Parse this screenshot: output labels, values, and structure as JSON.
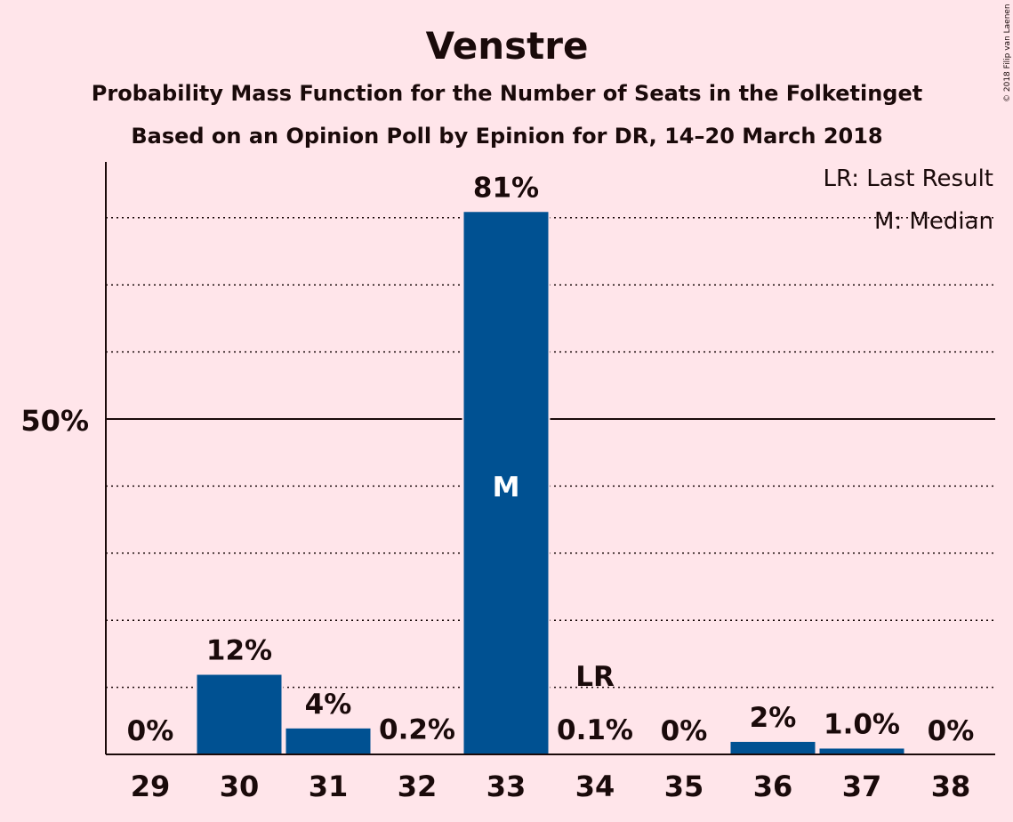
{
  "copyright": "© 2018 Filip van Laenen",
  "chart_data": {
    "type": "bar",
    "title": "Venstre",
    "subtitle": "Probability Mass Function for the Number of Seats in the Folketinget",
    "subtitle2": "Based on an Opinion Poll by Epinion for DR, 14–20 March 2018",
    "categories": [
      "29",
      "30",
      "31",
      "32",
      "33",
      "34",
      "35",
      "36",
      "37",
      "38"
    ],
    "values": [
      0,
      12,
      4,
      0.2,
      81,
      0.1,
      0,
      2,
      1.0,
      0
    ],
    "labels": [
      "0%",
      "12%",
      "4%",
      "0.2%",
      "81%",
      "0.1%",
      "0%",
      "2%",
      "1.0%",
      "0%"
    ],
    "ylim": [
      0,
      88
    ],
    "y_tick_label": "50%",
    "y_tick_value": 50,
    "gridlines": [
      10,
      20,
      30,
      40,
      50,
      60,
      70,
      80
    ],
    "median_category": "33",
    "median_marker": "M",
    "last_result_category": "34",
    "last_result_marker": "LR",
    "legend": [
      "LR: Last Result",
      "M: Median"
    ],
    "legend_position": "top-right",
    "bar_color": "#005192",
    "background_color": "#FFE5EA"
  }
}
